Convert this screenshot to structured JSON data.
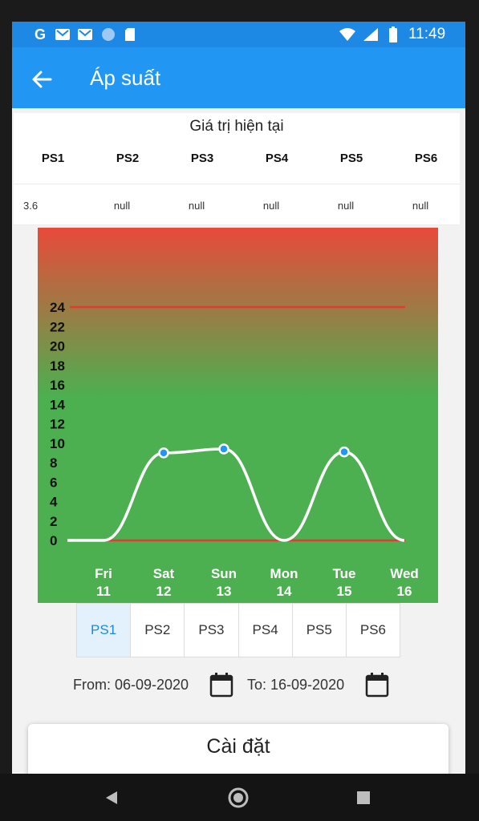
{
  "status_bar": {
    "time": "11:49",
    "icons": [
      "google-icon",
      "gmail-icon",
      "gmail-icon",
      "circle-icon",
      "sd-card-icon",
      "wifi-icon",
      "signal-icon",
      "battery-icon"
    ]
  },
  "app_bar": {
    "title": "Áp suất"
  },
  "current_values": {
    "title": "Giá trị hiện tại",
    "headers": [
      "PS1",
      "PS2",
      "PS3",
      "PS4",
      "PS5",
      "PS6"
    ],
    "values": [
      "3.6",
      "null",
      "null",
      "null",
      "null",
      "null"
    ]
  },
  "chart_data": {
    "type": "line",
    "x": [
      "Fri 11",
      "Sat 12",
      "Sun 13",
      "Mon 14",
      "Tue 15",
      "Wed 16"
    ],
    "x_labels": [
      {
        "day": "Fri",
        "date": "11"
      },
      {
        "day": "Sat",
        "date": "12"
      },
      {
        "day": "Sun",
        "date": "13"
      },
      {
        "day": "Mon",
        "date": "14"
      },
      {
        "day": "Tue",
        "date": "15"
      },
      {
        "day": "Wed",
        "date": "16"
      }
    ],
    "series": [
      {
        "values": [
          0,
          9,
          9.4,
          0,
          9.1,
          0
        ]
      }
    ],
    "y_ticks": [
      "0",
      "2",
      "4",
      "6",
      "8",
      "10",
      "12",
      "14",
      "16",
      "18",
      "20",
      "22",
      "24"
    ],
    "ylim": [
      0,
      24
    ],
    "threshold_lines": [
      24,
      0
    ],
    "grid": false,
    "colors": {
      "top": "#e84a3a",
      "bottom": "#4caf50",
      "line": "#ffffff",
      "threshold": "#e53935",
      "point": "#2196f3"
    }
  },
  "tabs": [
    {
      "label": "PS1",
      "active": true
    },
    {
      "label": "PS2",
      "active": false
    },
    {
      "label": "PS3",
      "active": false
    },
    {
      "label": "PS4",
      "active": false
    },
    {
      "label": "PS5",
      "active": false
    },
    {
      "label": "PS6",
      "active": false
    }
  ],
  "date_range": {
    "from": "From: 06-09-2020",
    "to": "To: 16-09-2020"
  },
  "settings": {
    "title": "Cài đặt"
  },
  "colors": {
    "primary": "#2196f3",
    "status": "#1e88e5"
  }
}
